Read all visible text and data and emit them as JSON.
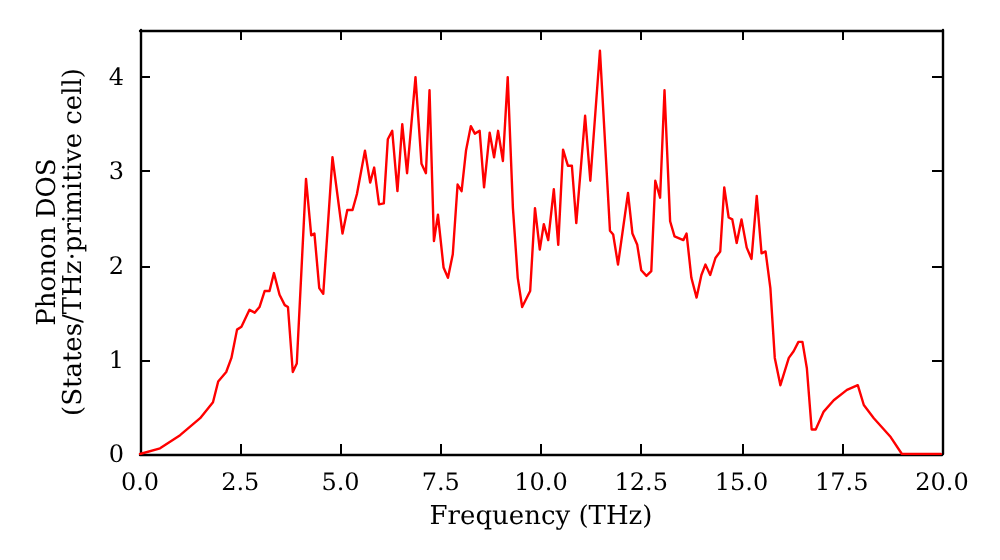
{
  "chart_data": {
    "type": "line",
    "xlabel": "Frequency (THz)",
    "ylabel": "Phonon DOS\n(States/THz·primitive cell)",
    "xlim": [
      0,
      20
    ],
    "ylim": [
      0,
      4.5
    ],
    "xticks": [
      {
        "value": 0,
        "label": "0.0"
      },
      {
        "value": 2.5,
        "label": "2.5"
      },
      {
        "value": 5,
        "label": "5.0"
      },
      {
        "value": 7.5,
        "label": "7.5"
      },
      {
        "value": 10,
        "label": "10.0"
      },
      {
        "value": 12.5,
        "label": "12.5"
      },
      {
        "value": 15,
        "label": "15.0"
      },
      {
        "value": 17.5,
        "label": "17.5"
      },
      {
        "value": 20,
        "label": "20.0"
      }
    ],
    "yticks": [
      0,
      1,
      2,
      3,
      4
    ],
    "marker": "none",
    "line_style": "solid",
    "series": [
      {
        "color": "#ff0000",
        "x": [
          0,
          0.5,
          1.0,
          1.5,
          1.82,
          1.95,
          2.15,
          2.28,
          2.42,
          2.53,
          2.73,
          2.86,
          2.98,
          3.11,
          3.23,
          3.34,
          3.48,
          3.61,
          3.69,
          3.81,
          3.91,
          4.14,
          4.27,
          4.35,
          4.47,
          4.57,
          4.8,
          5.05,
          5.17,
          5.3,
          5.41,
          5.61,
          5.74,
          5.84,
          5.96,
          6.08,
          6.18,
          6.29,
          6.42,
          6.54,
          6.66,
          6.87,
          7.02,
          7.13,
          7.22,
          7.33,
          7.43,
          7.57,
          7.68,
          7.8,
          7.92,
          8.02,
          8.13,
          8.25,
          8.35,
          8.47,
          8.58,
          8.72,
          8.83,
          8.93,
          9.05,
          9.17,
          9.3,
          9.42,
          9.53,
          9.73,
          9.85,
          9.97,
          10.07,
          10.18,
          10.32,
          10.43,
          10.55,
          10.67,
          10.77,
          10.88,
          11.1,
          11.23,
          11.47,
          11.72,
          11.8,
          11.92,
          12.17,
          12.28,
          12.4,
          12.5,
          12.63,
          12.75,
          12.85,
          12.97,
          13.08,
          13.22,
          13.33,
          13.55,
          13.63,
          13.75,
          13.88,
          14.0,
          14.1,
          14.22,
          14.35,
          14.47,
          14.57,
          14.68,
          14.77,
          14.88,
          15.0,
          15.13,
          15.25,
          15.38,
          15.5,
          15.6,
          15.72,
          15.83,
          15.97,
          16.18,
          16.3,
          16.42,
          16.52,
          16.63,
          16.75,
          16.85,
          17.05,
          17.3,
          17.63,
          17.9,
          18.05,
          18.3,
          18.72,
          19.0,
          19.97
        ],
        "values": [
          0,
          0.06,
          0.2,
          0.38,
          0.55,
          0.77,
          0.87,
          1.02,
          1.32,
          1.35,
          1.53,
          1.5,
          1.56,
          1.73,
          1.73,
          1.92,
          1.69,
          1.58,
          1.56,
          0.87,
          0.96,
          2.92,
          2.32,
          2.34,
          1.76,
          1.7,
          3.15,
          2.34,
          2.59,
          2.59,
          2.76,
          3.22,
          2.88,
          3.04,
          2.65,
          2.66,
          3.34,
          3.43,
          2.79,
          3.5,
          2.98,
          4.0,
          3.08,
          2.98,
          3.86,
          2.26,
          2.54,
          1.98,
          1.87,
          2.12,
          2.86,
          2.79,
          3.22,
          3.48,
          3.4,
          3.43,
          2.83,
          3.41,
          3.15,
          3.43,
          3.11,
          4.0,
          2.61,
          1.87,
          1.56,
          1.73,
          2.61,
          2.17,
          2.44,
          2.27,
          2.81,
          2.22,
          3.23,
          3.06,
          3.06,
          2.45,
          3.59,
          2.9,
          4.28,
          2.37,
          2.33,
          2.01,
          2.77,
          2.34,
          2.22,
          1.95,
          1.89,
          1.94,
          2.9,
          2.72,
          3.86,
          2.47,
          2.31,
          2.27,
          2.34,
          1.87,
          1.66,
          1.9,
          2.01,
          1.9,
          2.08,
          2.15,
          2.83,
          2.51,
          2.49,
          2.24,
          2.49,
          2.19,
          2.07,
          2.74,
          2.13,
          2.15,
          1.76,
          1.02,
          0.73,
          1.02,
          1.09,
          1.19,
          1.19,
          0.91,
          0.26,
          0.26,
          0.45,
          0.57,
          0.68,
          0.73,
          0.52,
          0.38,
          0.18,
          0,
          0
        ]
      }
    ]
  }
}
